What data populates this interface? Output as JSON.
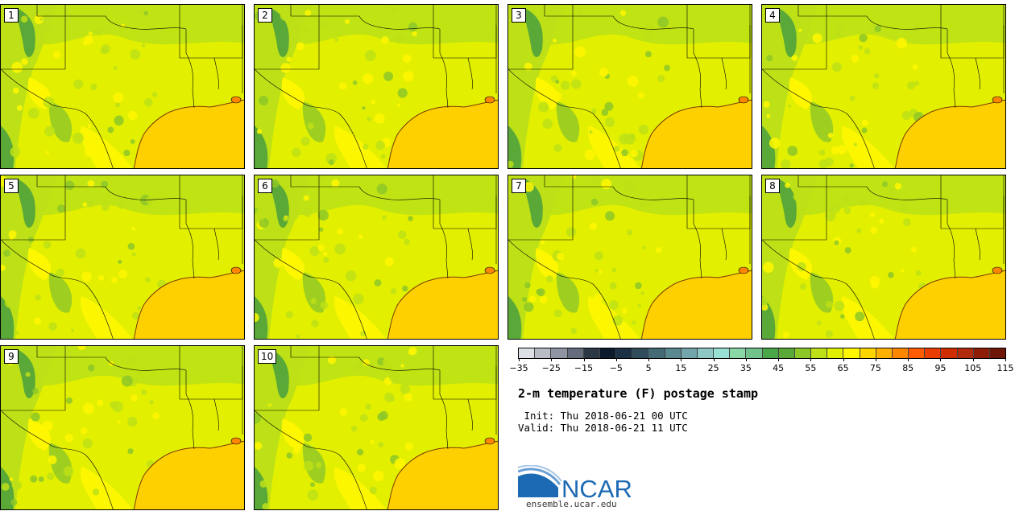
{
  "panels": [
    {
      "label": "1"
    },
    {
      "label": "2"
    },
    {
      "label": "3"
    },
    {
      "label": "4"
    },
    {
      "label": "5"
    },
    {
      "label": "6"
    },
    {
      "label": "7"
    },
    {
      "label": "8"
    },
    {
      "label": "9"
    },
    {
      "label": "10"
    }
  ],
  "colorbar": {
    "colors": [
      "#dde0e6",
      "#b9bcc5",
      "#8f95a3",
      "#646c7e",
      "#2d3846",
      "#0c1a2c",
      "#1b3045",
      "#2f4d5c",
      "#436a75",
      "#5a8990",
      "#73a6ac",
      "#8ec8c4",
      "#97e0d3",
      "#8ad8a8",
      "#6fc38b",
      "#49a748",
      "#5aa838",
      "#8dc728",
      "#bde116",
      "#e1f000",
      "#fff700",
      "#ffd500",
      "#ffb000",
      "#ff8600",
      "#ff5c00",
      "#ea3d00",
      "#cf2c00",
      "#b22a0c",
      "#8e1d08",
      "#6e1608"
    ],
    "tick_labels": [
      "−35",
      "−25",
      "−15",
      "−5",
      "5",
      "15",
      "25",
      "35",
      "45",
      "55",
      "65",
      "75",
      "85",
      "95",
      "105",
      "115"
    ]
  },
  "title": "2-m temperature (F) postage stamp",
  "init_line": " Init: Thu 2018-06-21 00 UTC",
  "valid_line": "Valid: Thu 2018-06-21 11 UTC",
  "logo": {
    "text": "NCAR",
    "url": "ensemble.ucar.edu",
    "brand_color": "#1c6ab3"
  },
  "map_colors": {
    "land": "#e2f000",
    "warm": "#fff700",
    "cool": "#bde116",
    "cold": "#8dc728",
    "colder": "#5aa838",
    "gulf": "#ffd000",
    "lake": "#ff8600"
  }
}
